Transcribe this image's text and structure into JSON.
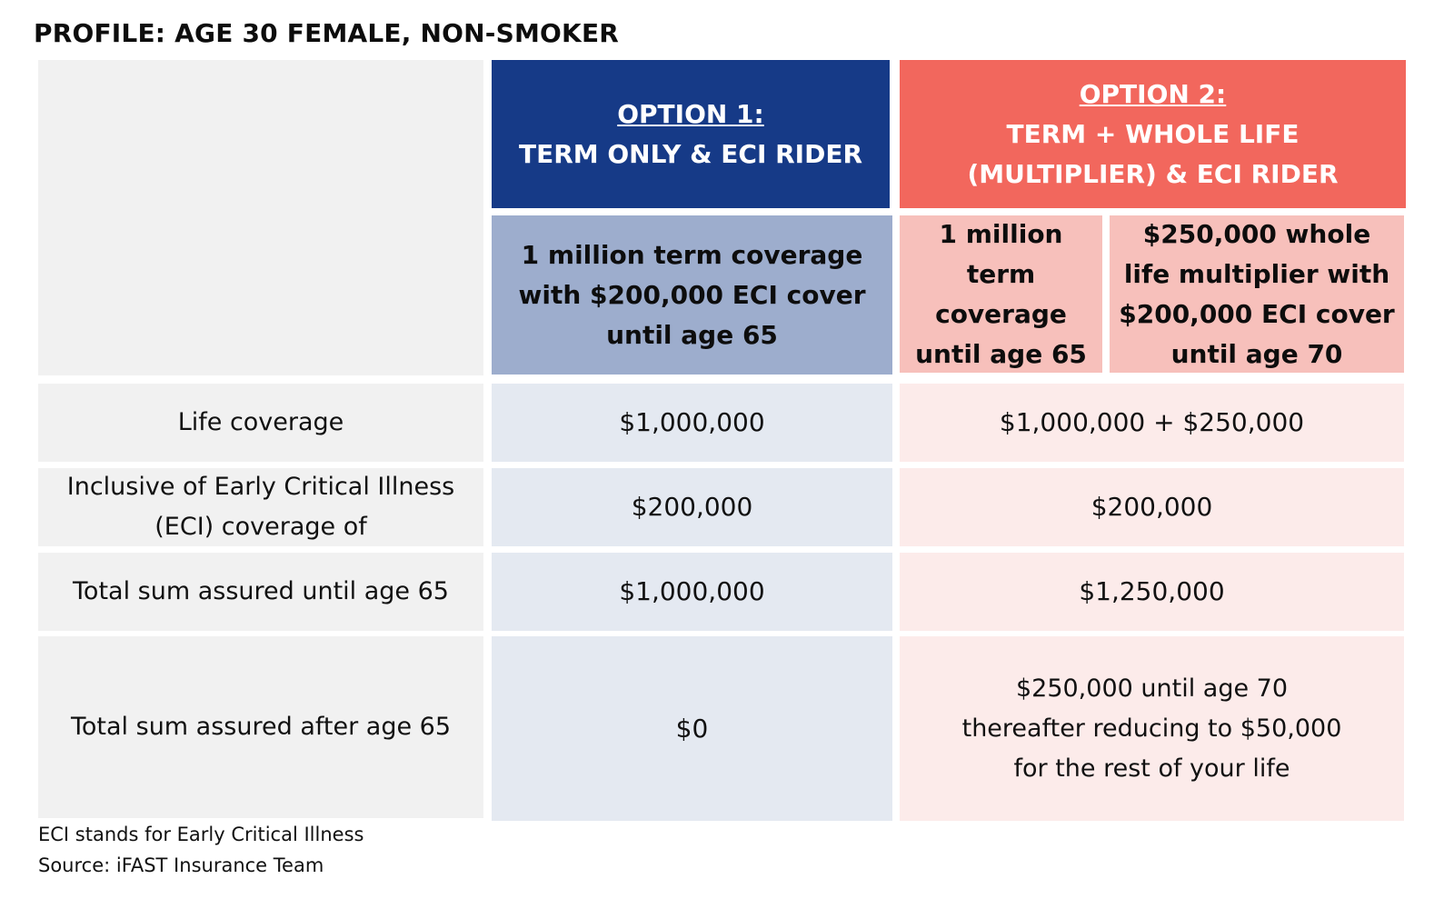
{
  "profile_title": "PROFILE: AGE 30 FEMALE, NON-SMOKER",
  "header": {
    "option1": {
      "title": "OPTION 1:",
      "subtitle": "TERM ONLY & ECI RIDER",
      "description": "1 million term coverage with $200,000 ECI cover until age 65"
    },
    "option2": {
      "title": "OPTION 2:",
      "subtitle_line1": "TERM + WHOLE LIFE",
      "subtitle_line2": "(MULTIPLIER) & ECI RIDER",
      "description_term": "1 million term coverage until age 65",
      "description_whole_life": "$250,000 whole life multiplier with $200,000 ECI cover until age 70"
    }
  },
  "rows": [
    {
      "label": "Life coverage",
      "option1": "$1,000,000",
      "option2": "$1,000,000 + $250,000"
    },
    {
      "label": "Inclusive of Early Critical Illness (ECI) coverage of",
      "option1": "$200,000",
      "option2": "$200,000"
    },
    {
      "label": "Total sum assured until age 65",
      "option1": "$1,000,000",
      "option2": "$1,250,000"
    },
    {
      "label": "Total sum assured after age 65",
      "option1": "$0",
      "option2_lines": [
        "$250,000 until age 70",
        "thereafter reducing to $50,000",
        "for the rest of your life"
      ]
    }
  ],
  "footnotes": {
    "eci_note": "ECI stands for Early Critical Illness",
    "source": "Source: iFAST Insurance Team"
  },
  "colors": {
    "option1_header": "#163a87",
    "option1_subheader": "#9dadcd",
    "option1_values": "#e4e9f1",
    "option2_header": "#f2675d",
    "option2_subheader": "#f7c0bb",
    "option2_values": "#fcebea",
    "label_column": "#f1f1f1"
  }
}
